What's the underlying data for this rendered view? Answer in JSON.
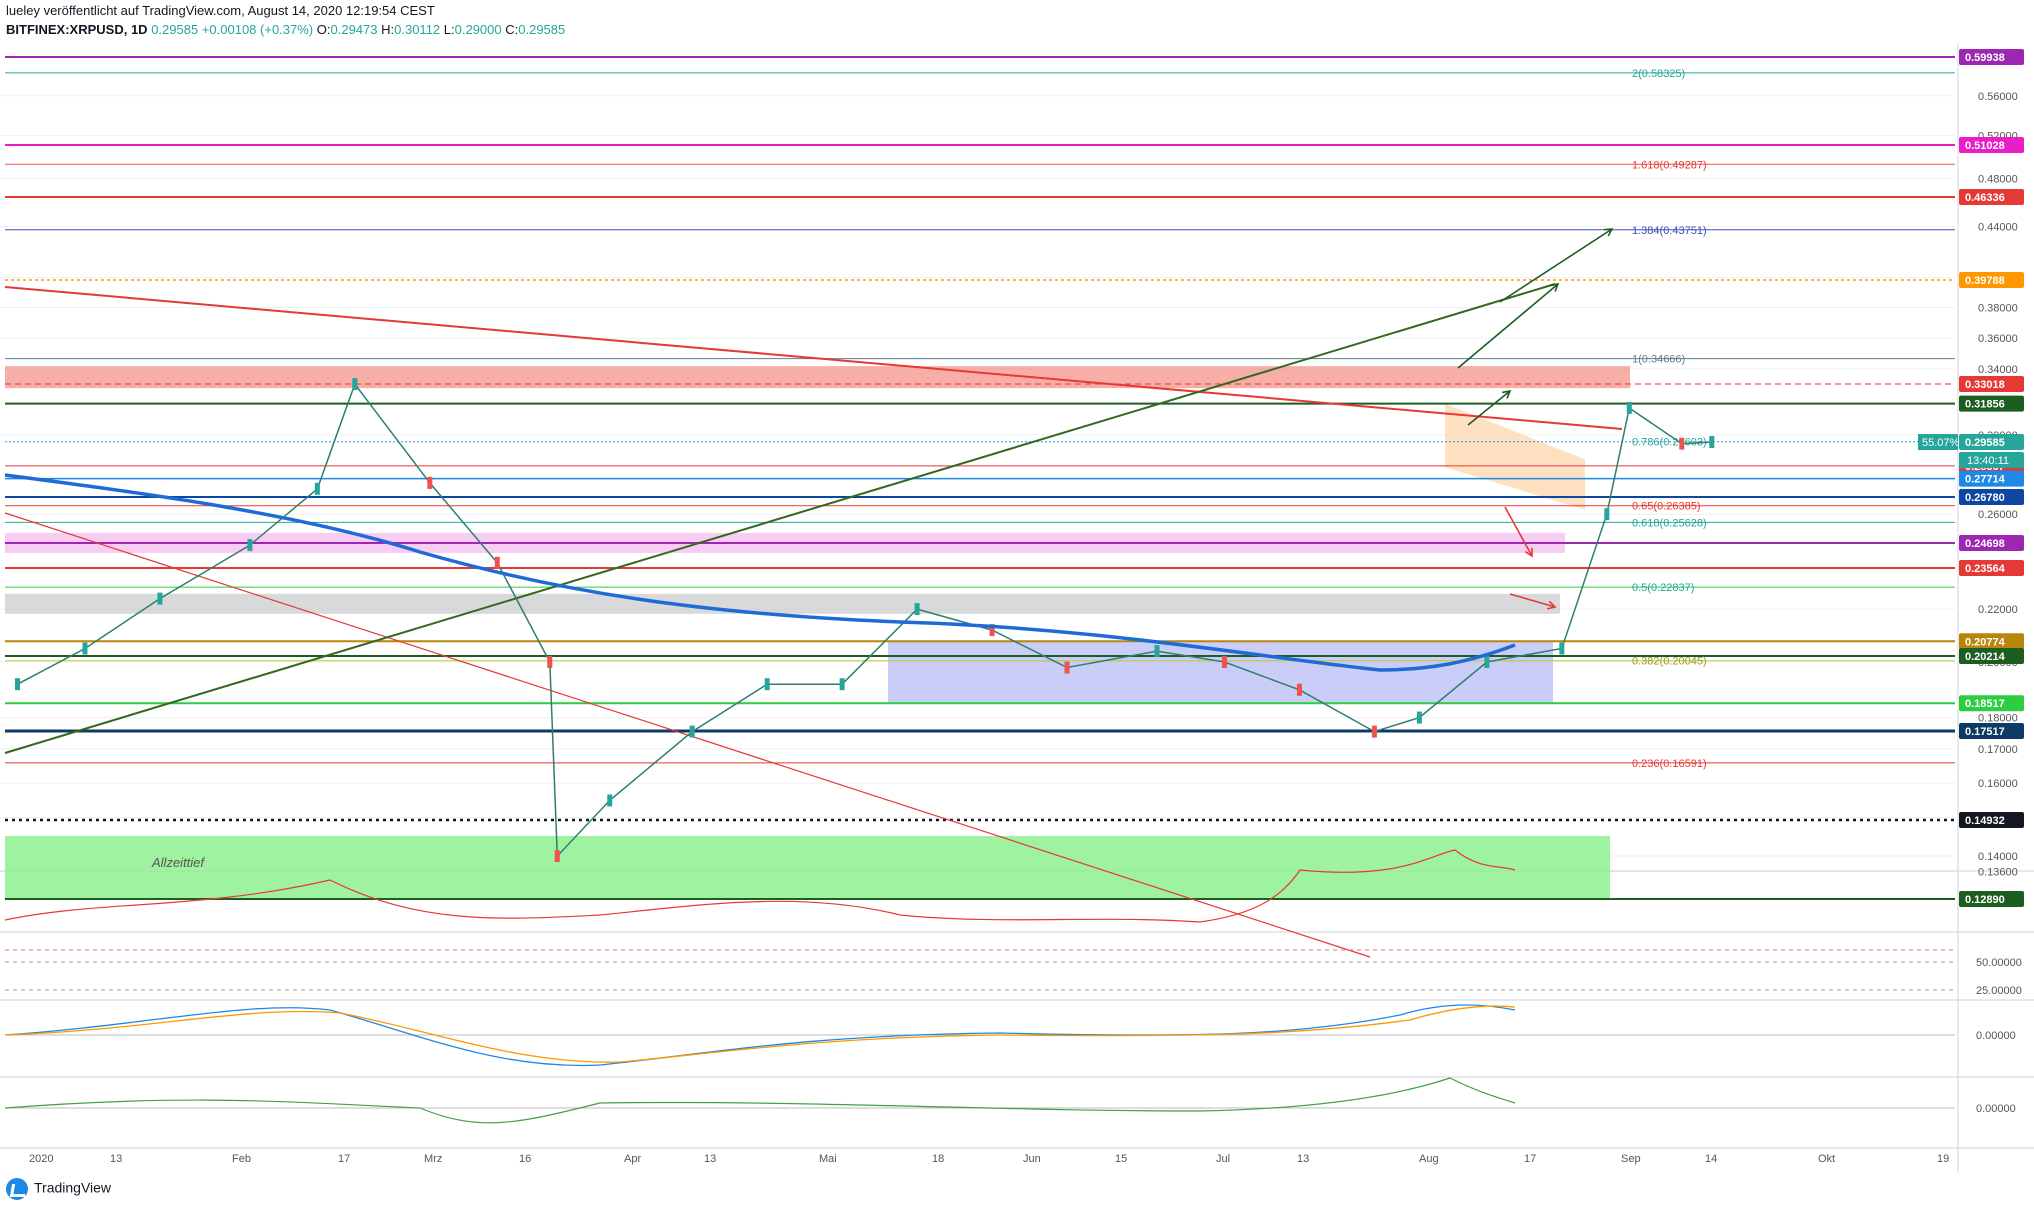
{
  "header": {
    "line1": "lueley veröffentlicht auf TradingView.com, August 14, 2020 12:19:54 CEST",
    "symbol": "BITFINEX:XRPUSD, 1D",
    "last": "0.29585",
    "change": "+0.00108 (+0.37%)",
    "ohlc": {
      "o_label": "O:",
      "o": "0.29473",
      "h_label": "H:",
      "h": "0.30112",
      "l_label": "L:",
      "l": "0.29000",
      "c_label": "C:",
      "c": "0.29585"
    }
  },
  "footer": {
    "brand": "TradingView"
  },
  "colors": {
    "bull": "#26a69a",
    "bear": "#ef5350",
    "grid": "#eef0f4",
    "ema200": "#1e6bd6",
    "purple": "#9c27b0",
    "magenta": "#e91ec8",
    "red": "#e53935",
    "orange": "#ff9800",
    "darkgreen": "#1b5e20",
    "navy": "#0d47a1"
  },
  "chart_data": {
    "type": "line",
    "title": "BITFINEX:XRPUSD, 1D",
    "ylim": [
      0.1289,
      0.6
    ],
    "y_ticks": [
      "0.56000",
      "0.52000",
      "0.48000",
      "0.44000",
      "0.40000",
      "0.38000",
      "0.36000",
      "0.34000",
      "0.30000",
      "0.26000",
      "0.22000",
      "0.20000",
      "0.18000",
      "0.17000",
      "0.16000",
      "0.15000",
      "0.14000",
      "0.13600"
    ],
    "x_ticks": [
      "2020",
      "13",
      "Feb",
      "17",
      "Mrz",
      "16",
      "Apr",
      "13",
      "Mai",
      "18",
      "Jun",
      "15",
      "Jul",
      "13",
      "Aug",
      "17",
      "Sep",
      "14",
      "Okt",
      "19"
    ],
    "price_series": {
      "name": "",
      "x": [
        "2020-01-01",
        "2020-01-10",
        "2020-01-20",
        "2020-02-01",
        "2020-02-10",
        "2020-02-15",
        "2020-02-25",
        "2020-03-05",
        "2020-03-12",
        "2020-03-13",
        "2020-03-20",
        "2020-03-31",
        "2020-04-10",
        "2020-04-20",
        "2020-04-30",
        "2020-05-10",
        "2020-05-20",
        "2020-06-01",
        "2020-06-10",
        "2020-06-20",
        "2020-06-30",
        "2020-07-06",
        "2020-07-15",
        "2020-07-25",
        "2020-07-31",
        "2020-08-03",
        "2020-08-10",
        "2020-08-14"
      ],
      "y": [
        0.192,
        0.205,
        0.224,
        0.246,
        0.272,
        0.3301,
        0.275,
        0.238,
        0.2,
        0.14,
        0.155,
        0.175,
        0.192,
        0.192,
        0.22,
        0.212,
        0.198,
        0.204,
        0.2,
        0.19,
        0.175,
        0.18,
        0.2,
        0.205,
        0.26,
        0.316,
        0.295,
        0.29585
      ]
    },
    "price_labels": [
      {
        "value": "0.59938",
        "color": "#9c27b0"
      },
      {
        "value": "0.51028",
        "color": "#e91ec8"
      },
      {
        "value": "0.46336",
        "color": "#e53935"
      },
      {
        "value": "0.39788",
        "color": "#ff9800"
      },
      {
        "value": "0.33018",
        "color": "#e53935"
      },
      {
        "value": "0.31856",
        "color": "#1b5e20"
      },
      {
        "value": "0.29585",
        "color": "#26a69a"
      },
      {
        "value": "0.28367",
        "color": "#e53935"
      },
      {
        "value": "0.27714",
        "color": "#1e88e5"
      },
      {
        "value": "0.26780",
        "color": "#0d47a1"
      },
      {
        "value": "0.24698",
        "color": "#9c27b0"
      },
      {
        "value": "0.23564",
        "color": "#e53935"
      },
      {
        "value": "0.20774",
        "color": "#b8860b"
      },
      {
        "value": "0.20214",
        "color": "#1b5e20"
      },
      {
        "value": "0.18517",
        "color": "#2ecc40"
      },
      {
        "value": "0.17517",
        "color": "#0d3b66"
      },
      {
        "value": "0.14932",
        "color": "#131722"
      },
      {
        "value": "0.12890",
        "color": "#1b5e20"
      }
    ],
    "countdown": {
      "text": "13:40:11",
      "percent": "55.07%"
    },
    "fibonacci": [
      {
        "label": "2(0.58325)",
        "value": 0.58325
      },
      {
        "label": "1.618(0.49287)",
        "value": 0.49287
      },
      {
        "label": "1.384(0.43751)",
        "value": 0.43751
      },
      {
        "label": "1(0.34666)",
        "value": 0.34666
      },
      {
        "label": "0.786(0.29603)",
        "value": 0.29603
      },
      {
        "label": "0.65(0.26385)",
        "value": 0.26385
      },
      {
        "label": "0.618(0.25628)",
        "value": 0.25628
      },
      {
        "label": "0.5(0.22837)",
        "value": 0.22837
      },
      {
        "label": "0.382(0.20045)",
        "value": 0.20045
      },
      {
        "label": "0.236(0.16591)",
        "value": 0.16591
      }
    ],
    "annotation": "Allzeittief",
    "rsi": {
      "ticks": [
        "50.00000",
        "25.00000"
      ]
    },
    "macd": {
      "ticks": [
        "0.00000"
      ]
    },
    "momentum": {
      "ticks": [
        "0.00000"
      ]
    }
  }
}
